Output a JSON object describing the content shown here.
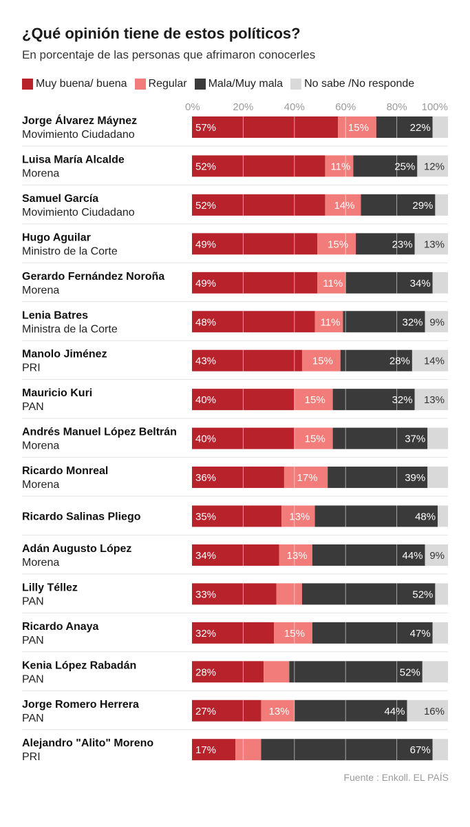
{
  "title": "¿Qué opinión tiene de estos políticos?",
  "subtitle": "En porcentaje de las personas que afrimaron conocerles",
  "source": "Fuente : Enkoll. EL PAÍS",
  "colors": {
    "good": "#b8232b",
    "regular": "#f27c79",
    "bad": "#3a3a3a",
    "ns": "#d9d9d9",
    "grid": "#ffffff",
    "separator": "#e3e3e3"
  },
  "chart_data": {
    "type": "bar",
    "orientation": "horizontal",
    "stacked": true,
    "xlim": [
      0,
      100
    ],
    "x_ticks": [
      "0%",
      "20%",
      "40%",
      "60%",
      "80%",
      "100%"
    ],
    "grid": true,
    "legend_position": "top",
    "series": [
      {
        "key": "good",
        "name": "Muy buena/ buena"
      },
      {
        "key": "regular",
        "name": "Regular"
      },
      {
        "key": "bad",
        "name": "Mala/Muy mala"
      },
      {
        "key": "ns",
        "name": "No sabe /No responde"
      }
    ],
    "rows": [
      {
        "name": "Jorge Álvarez Máynez",
        "party": "Movimiento Ciudadano",
        "values": [
          57,
          15,
          22,
          6
        ],
        "labels": [
          "57%",
          "15%",
          "22%",
          ""
        ]
      },
      {
        "name": "Luisa María Alcalde",
        "party": "Morena",
        "values": [
          52,
          11,
          25,
          12
        ],
        "labels": [
          "52%",
          "11%",
          "25%",
          "12%"
        ]
      },
      {
        "name": "Samuel García",
        "party": "Movimiento Ciudadano",
        "values": [
          52,
          14,
          29,
          5
        ],
        "labels": [
          "52%",
          "14%",
          "29%",
          ""
        ]
      },
      {
        "name": "Hugo Aguilar",
        "party": "Ministro de la Corte",
        "values": [
          49,
          15,
          23,
          13
        ],
        "labels": [
          "49%",
          "15%",
          "23%",
          "13%"
        ]
      },
      {
        "name": "Gerardo Fernández Noroña",
        "party": "Morena",
        "values": [
          49,
          11,
          34,
          6
        ],
        "labels": [
          "49%",
          "11%",
          "34%",
          ""
        ]
      },
      {
        "name": "Lenia Batres",
        "party": "Ministra de la Corte",
        "values": [
          48,
          11,
          32,
          9
        ],
        "labels": [
          "48%",
          "11%",
          "32%",
          "9%"
        ]
      },
      {
        "name": "Manolo Jiménez",
        "party": "PRI",
        "values": [
          43,
          15,
          28,
          14
        ],
        "labels": [
          "43%",
          "15%",
          "28%",
          "14%"
        ]
      },
      {
        "name": "Mauricio Kuri",
        "party": "PAN",
        "values": [
          40,
          15,
          32,
          13
        ],
        "labels": [
          "40%",
          "15%",
          "32%",
          "13%"
        ]
      },
      {
        "name": "Andrés Manuel López Beltrán",
        "party": "Morena",
        "values": [
          40,
          15,
          37,
          8
        ],
        "labels": [
          "40%",
          "15%",
          "37%",
          ""
        ]
      },
      {
        "name": "Ricardo Monreal",
        "party": "Morena",
        "values": [
          36,
          17,
          39,
          8
        ],
        "labels": [
          "36%",
          "17%",
          "39%",
          ""
        ]
      },
      {
        "name": "Ricardo Salinas Pliego",
        "party": "",
        "values": [
          35,
          13,
          48,
          4
        ],
        "labels": [
          "35%",
          "13%",
          "48%",
          ""
        ]
      },
      {
        "name": "Adán Augusto López",
        "party": "Morena",
        "values": [
          34,
          13,
          44,
          9
        ],
        "labels": [
          "34%",
          "13%",
          "44%",
          "9%"
        ]
      },
      {
        "name": "Lilly Téllez",
        "party": "PAN",
        "values": [
          33,
          10,
          52,
          5
        ],
        "labels": [
          "33%",
          "",
          "52%",
          ""
        ]
      },
      {
        "name": "Ricardo Anaya",
        "party": "PAN",
        "values": [
          32,
          15,
          47,
          6
        ],
        "labels": [
          "32%",
          "15%",
          "47%",
          ""
        ]
      },
      {
        "name": "Kenia López Rabadán",
        "party": "PAN",
        "values": [
          28,
          10,
          52,
          10
        ],
        "labels": [
          "28%",
          "",
          "52%",
          ""
        ]
      },
      {
        "name": "Jorge Romero Herrera",
        "party": "PAN",
        "values": [
          27,
          13,
          44,
          16
        ],
        "labels": [
          "27%",
          "13%",
          "44%",
          "16%"
        ]
      },
      {
        "name": "Alejandro \"Alito\" Moreno",
        "party": "PRI",
        "values": [
          17,
          10,
          67,
          6
        ],
        "labels": [
          "17%",
          "",
          "67%",
          ""
        ]
      }
    ]
  }
}
